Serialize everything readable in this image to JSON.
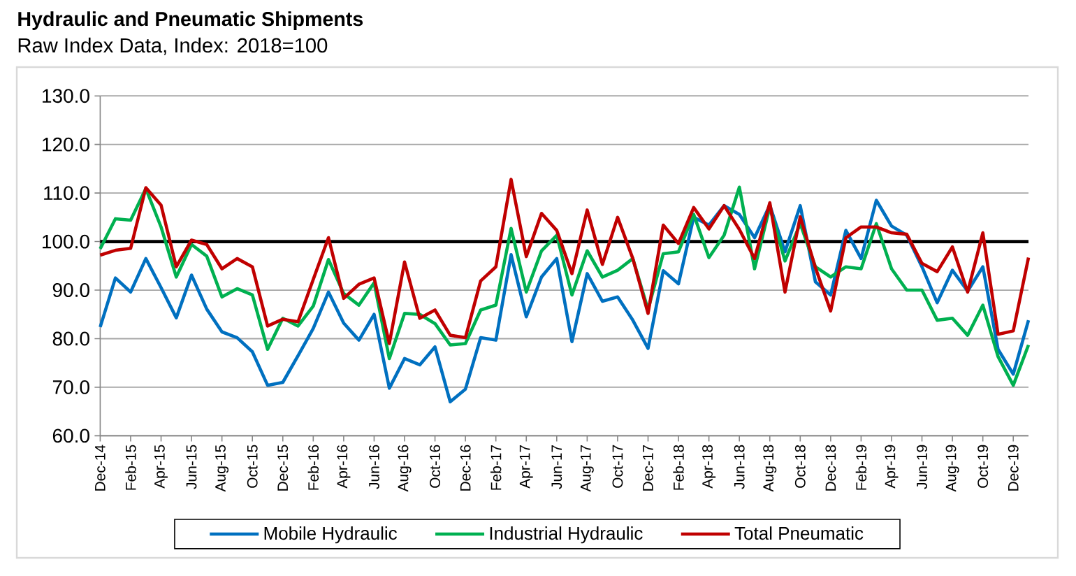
{
  "chart_data": {
    "type": "line",
    "title": "Hydraulic and Pneumatic Shipments",
    "subtitle": "Raw Index Data, Index: 2018=100",
    "categories": [
      "Dec-14",
      null,
      "Feb-15",
      null,
      "Apr-15",
      null,
      "Jun-15",
      null,
      "Aug-15",
      null,
      "Oct-15",
      null,
      "Dec-15",
      null,
      "Feb-16",
      null,
      "Apr-16",
      null,
      "Jun-16",
      null,
      "Aug-16",
      null,
      "Oct-16",
      null,
      "Dec-16",
      null,
      "Feb-17",
      null,
      "Apr-17",
      null,
      "Jun-17",
      null,
      "Aug-17",
      null,
      "Oct-17",
      null,
      "Dec-17",
      null,
      "Feb-18",
      null,
      "Apr-18",
      null,
      "Jun-18",
      null,
      "Aug-18",
      null,
      "Oct-18",
      null,
      "Dec-18",
      null,
      "Feb-19",
      null,
      "Apr-19",
      null,
      "Jun-19",
      null,
      "Aug-19",
      null,
      "Oct-19",
      null,
      "Dec-19",
      null
    ],
    "series": [
      {
        "name": "Mobile Hydraulic",
        "color": "#0070c0",
        "values": [
          82.4,
          92.5,
          89.6,
          96.5,
          90.5,
          84.3,
          93.1,
          86.1,
          81.4,
          80.2,
          77.3,
          70.4,
          71.0,
          76.5,
          82.1,
          89.6,
          83.2,
          79.7,
          85.0,
          69.8,
          75.9,
          74.6,
          78.3,
          67.0,
          69.6,
          80.2,
          79.7,
          97.3,
          84.5,
          92.7,
          96.5,
          79.4,
          93.4,
          87.7,
          88.6,
          83.8,
          78.0,
          94.0,
          91.3,
          105.0,
          103.4,
          107.4,
          105.6,
          100.8,
          107.5,
          97.9,
          107.4,
          91.7,
          89.0,
          102.3,
          96.5,
          108.5,
          103.2,
          101.3,
          94.8,
          87.4,
          94.1,
          89.8,
          94.8,
          77.8,
          72.7,
          83.8
        ]
      },
      {
        "name": "Industrial Hydraulic",
        "color": "#00b050",
        "values": [
          98.5,
          104.7,
          104.4,
          110.9,
          103.0,
          92.7,
          99.4,
          97.0,
          88.6,
          90.3,
          89.0,
          77.8,
          84.2,
          82.6,
          86.7,
          96.3,
          89.3,
          86.9,
          91.5,
          75.9,
          85.2,
          85.0,
          83.1,
          78.7,
          79.0,
          85.9,
          86.9,
          102.7,
          89.6,
          98.1,
          101.3,
          89.0,
          98.1,
          92.7,
          94.1,
          96.5,
          86.0,
          97.5,
          97.9,
          105.6,
          96.7,
          101.3,
          111.2,
          94.4,
          107.1,
          96.0,
          103.7,
          94.8,
          92.7,
          94.8,
          94.4,
          103.7,
          94.4,
          90.0,
          90.0,
          83.8,
          84.2,
          80.7,
          86.9,
          76.3,
          70.4,
          78.7
        ]
      },
      {
        "name": "Total Pneumatic",
        "color": "#c00000",
        "values": [
          97.2,
          98.2,
          98.6,
          111.1,
          107.5,
          94.8,
          100.3,
          99.4,
          94.4,
          96.5,
          94.8,
          82.6,
          84.0,
          83.5,
          92.2,
          100.8,
          88.3,
          91.2,
          92.5,
          79.0,
          95.8,
          84.2,
          85.9,
          80.7,
          80.2,
          91.9,
          94.8,
          112.8,
          96.9,
          105.8,
          102.3,
          93.4,
          106.5,
          95.3,
          105.0,
          96.5,
          85.2,
          103.4,
          99.6,
          107.0,
          102.6,
          107.4,
          102.5,
          96.5,
          108.0,
          89.6,
          105.1,
          94.6,
          85.7,
          100.8,
          103.0,
          103.0,
          101.8,
          101.5,
          95.5,
          93.8,
          98.9,
          89.6,
          101.8,
          80.9,
          81.6,
          96.7
        ]
      }
    ],
    "ylim": [
      60,
      130
    ],
    "yticks": [
      {
        "value": 60,
        "label": "60.0"
      },
      {
        "value": 70,
        "label": "70.0"
      },
      {
        "value": 80,
        "label": "80.0"
      },
      {
        "value": 90,
        "label": "90.0"
      },
      {
        "value": 100,
        "label": "100.0"
      },
      {
        "value": 110,
        "label": "110.0"
      },
      {
        "value": 120,
        "label": "120.0"
      },
      {
        "value": 130,
        "label": "130.0"
      }
    ],
    "grid": "y",
    "legend": "bottom",
    "ref_lines": [
      {
        "axis": "y",
        "value": 100,
        "color": "#000000"
      }
    ]
  }
}
